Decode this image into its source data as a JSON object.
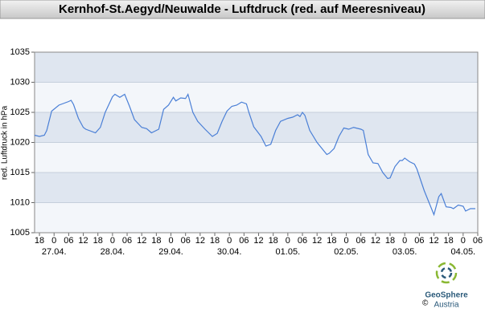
{
  "chart_data": {
    "type": "line",
    "title": "Kernhof-St.Aegyd/Neuwalde - Luftdruck (red. auf Meeresniveau)",
    "y_label": "red. Luftdruck in hPa",
    "credit": {
      "copyright": "©",
      "name": "GeoSphere",
      "sub": "Austria"
    },
    "color": "#4a7fd6",
    "grid": true,
    "ylim": [
      1005,
      1035
    ],
    "yticks": [
      1005,
      1010,
      1015,
      1020,
      1025,
      1030,
      1035
    ],
    "xlim": [
      -8,
      174
    ],
    "xticks": [
      {
        "value": -6,
        "label": "18"
      },
      {
        "value": 0,
        "label": "0"
      },
      {
        "value": 6,
        "label": "06"
      },
      {
        "value": 12,
        "label": "12"
      },
      {
        "value": 18,
        "label": "18"
      },
      {
        "value": 24,
        "label": "0"
      },
      {
        "value": 30,
        "label": "06"
      },
      {
        "value": 36,
        "label": "12"
      },
      {
        "value": 42,
        "label": "18"
      },
      {
        "value": 48,
        "label": "0"
      },
      {
        "value": 54,
        "label": "06"
      },
      {
        "value": 60,
        "label": "12"
      },
      {
        "value": 66,
        "label": "18"
      },
      {
        "value": 72,
        "label": "0"
      },
      {
        "value": 78,
        "label": "06"
      },
      {
        "value": 84,
        "label": "12"
      },
      {
        "value": 90,
        "label": "18"
      },
      {
        "value": 96,
        "label": "0"
      },
      {
        "value": 102,
        "label": "06"
      },
      {
        "value": 108,
        "label": "12"
      },
      {
        "value": 114,
        "label": "18"
      },
      {
        "value": 120,
        "label": "0"
      },
      {
        "value": 126,
        "label": "06"
      },
      {
        "value": 132,
        "label": "12"
      },
      {
        "value": 138,
        "label": "18"
      },
      {
        "value": 144,
        "label": "0"
      },
      {
        "value": 150,
        "label": "06"
      },
      {
        "value": 156,
        "label": "12"
      },
      {
        "value": 162,
        "label": "18"
      },
      {
        "value": 168,
        "label": "0"
      },
      {
        "value": 174,
        "label": "06"
      }
    ],
    "date_labels": [
      {
        "value": 0,
        "label": "27.04."
      },
      {
        "value": 24,
        "label": "28.04."
      },
      {
        "value": 48,
        "label": "29.04."
      },
      {
        "value": 72,
        "label": "30.04."
      },
      {
        "value": 96,
        "label": "01.05."
      },
      {
        "value": 120,
        "label": "02.05."
      },
      {
        "value": 144,
        "label": "03.05."
      },
      {
        "value": 168,
        "label": "04.05."
      }
    ],
    "x": [
      -8,
      -6,
      -4,
      -3,
      -1,
      2,
      4,
      6,
      7,
      8,
      10,
      12,
      13,
      17,
      19,
      21,
      24,
      25,
      27,
      29,
      31,
      33,
      36,
      38,
      40,
      43,
      45,
      47,
      49,
      50,
      52,
      54,
      55,
      57,
      59,
      62,
      65,
      67,
      69,
      71,
      73,
      75,
      77,
      79,
      80,
      82,
      85,
      87,
      89,
      91,
      93,
      96,
      98,
      100,
      101,
      102,
      103,
      105,
      108,
      110,
      112,
      113,
      115,
      117,
      119,
      121,
      123,
      126,
      127,
      129,
      131,
      133,
      135,
      137,
      138,
      140,
      142,
      143,
      144,
      146,
      148,
      149,
      151,
      152,
      154,
      156,
      158,
      159,
      161,
      163,
      164,
      166,
      168,
      169,
      171,
      173
    ],
    "values": [
      1021.2,
      1021,
      1021.2,
      1022,
      1025.2,
      1026.2,
      1026.5,
      1026.8,
      1027,
      1026.3,
      1024,
      1022.5,
      1022.2,
      1021.6,
      1022.5,
      1025,
      1027.6,
      1028,
      1027.5,
      1028,
      1026,
      1023.8,
      1022.5,
      1022.3,
      1021.6,
      1022.2,
      1025.5,
      1026.2,
      1027.5,
      1026.9,
      1027.4,
      1027.3,
      1028,
      1025,
      1023.5,
      1022.2,
      1021,
      1021.5,
      1023.5,
      1025.2,
      1026,
      1026.2,
      1026.7,
      1026.4,
      1025,
      1022.6,
      1021,
      1019.4,
      1019.7,
      1022,
      1023.5,
      1024,
      1024.2,
      1024.6,
      1024.3,
      1025,
      1024.5,
      1022,
      1020,
      1019,
      1018,
      1018.2,
      1019,
      1021,
      1022.4,
      1022.2,
      1022.5,
      1022.2,
      1022,
      1018,
      1016.6,
      1016.5,
      1015,
      1014,
      1014.1,
      1016,
      1017,
      1017,
      1017.4,
      1016.8,
      1016.4,
      1015.6,
      1013.2,
      1012,
      1010,
      1008,
      1011,
      1011.5,
      1009.3,
      1009.2,
      1009,
      1009.6,
      1009.4,
      1008.6,
      1009,
      1009
    ]
  }
}
